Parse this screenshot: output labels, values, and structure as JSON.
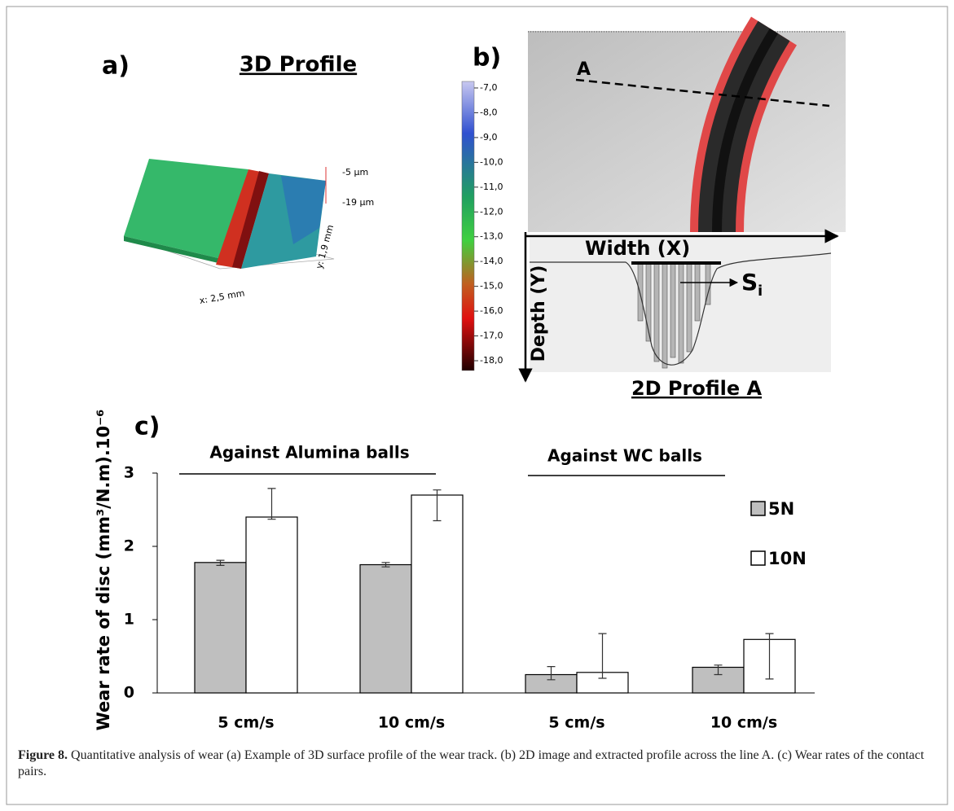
{
  "panel_a": {
    "label": "a)",
    "title": "3D Profile",
    "scale_labels": [
      "-5 µm",
      "-19 µm"
    ],
    "x_size": "x: 2,5 mm",
    "y_size": "y: 1,9 mm"
  },
  "panel_b": {
    "label": "b)",
    "line_label": "A",
    "colorbar_ticks": [
      {
        "value": -7,
        "label": "-7,0"
      },
      {
        "value": -8,
        "label": "-8,0"
      },
      {
        "value": -9,
        "label": "-9,0"
      },
      {
        "value": -10,
        "label": "-10,0"
      },
      {
        "value": -11,
        "label": "-11,0"
      },
      {
        "value": -12,
        "label": "-12,0"
      },
      {
        "value": -13,
        "label": "-13,0"
      },
      {
        "value": -14,
        "label": "-14,0"
      },
      {
        "value": -15,
        "label": "-15,0"
      },
      {
        "value": -16,
        "label": "-16,0"
      },
      {
        "value": -17,
        "label": "-17,0"
      },
      {
        "value": -18,
        "label": "-18,0"
      }
    ],
    "x_axis": "Width (X)",
    "y_axis": "Depth (Y)",
    "segment_label": "S",
    "segment_subscript": "i",
    "profile_title": "2D Profile  A"
  },
  "chart_data": {
    "type": "bar",
    "panel_label": "c)",
    "ylabel": "Wear rate of disc (mm³/N.m).10⁻⁶",
    "group_labels": [
      "Against  Alumina balls",
      "Against WC balls"
    ],
    "categories": [
      "5 cm/s",
      "10 cm/s",
      "5 cm/s",
      "10 cm/s"
    ],
    "series": [
      {
        "name": "5N",
        "color": "#bfbfbf",
        "values": [
          1.78,
          1.75,
          0.25,
          0.35
        ],
        "errors_minus": [
          0.04,
          0.03,
          0.07,
          0.1
        ],
        "errors_plus": [
          0.03,
          0.03,
          0.11,
          0.03
        ]
      },
      {
        "name": "10N",
        "color": "#ffffff",
        "values": [
          2.4,
          2.7,
          0.28,
          0.73
        ],
        "errors_minus": [
          0.03,
          0.35,
          0.08,
          0.54
        ],
        "errors_plus": [
          0.39,
          0.07,
          0.53,
          0.08
        ]
      }
    ],
    "ylim": [
      0,
      3
    ],
    "yticks": [
      0,
      1,
      2,
      3
    ],
    "grid": false,
    "legend_position": "right"
  },
  "caption": {
    "label": "Figure 8.",
    "text": " Quantitative analysis of wear (a) Example of 3D surface profile of the wear track. (b) 2D image and extracted profile across the line A. (c) Wear rates of the contact pairs."
  }
}
